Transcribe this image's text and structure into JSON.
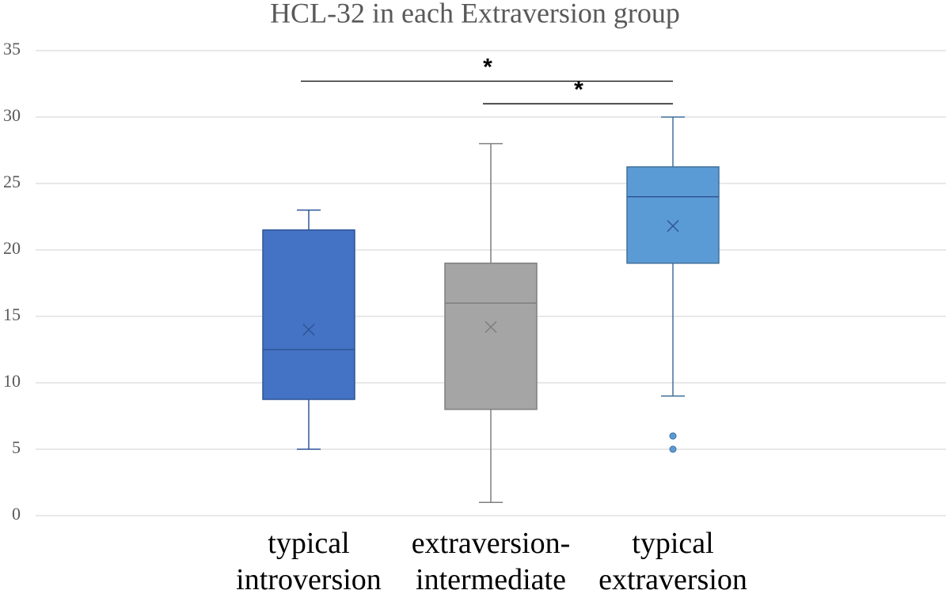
{
  "chart_data": {
    "type": "box",
    "title": "HCL-32 in each Extraversion group",
    "categories": [
      "typical introversion",
      "extraversion-intermediate",
      "typical extraversion"
    ],
    "series": [
      {
        "name": "typical introversion",
        "color": "#4472c4",
        "min": 5,
        "q1": 8.75,
        "median": 12.5,
        "q3": 21.5,
        "max": 23,
        "mean": 14,
        "outliers": []
      },
      {
        "name": "extraversion-intermediate",
        "color": "#a5a5a5",
        "min": 1,
        "q1": 8,
        "median": 16,
        "q3": 19,
        "max": 28,
        "mean": 14.2,
        "outliers": []
      },
      {
        "name": "typical extraversion",
        "color": "#5b9bd5",
        "min": 9,
        "q1": 19,
        "median": 24,
        "q3": 26.25,
        "max": 30,
        "mean": 21.8,
        "outliers": [
          6,
          5
        ]
      }
    ],
    "annotations": [
      {
        "label": "*",
        "between": [
          "typical introversion",
          "typical extraversion"
        ],
        "y": 32.7
      },
      {
        "label": "*",
        "between": [
          "extraversion-intermediate",
          "typical extraversion"
        ],
        "y": 31
      }
    ],
    "ylim": [
      0,
      35
    ],
    "yticks": [
      0,
      5,
      10,
      15,
      20,
      25,
      30,
      35
    ],
    "grid": true
  }
}
